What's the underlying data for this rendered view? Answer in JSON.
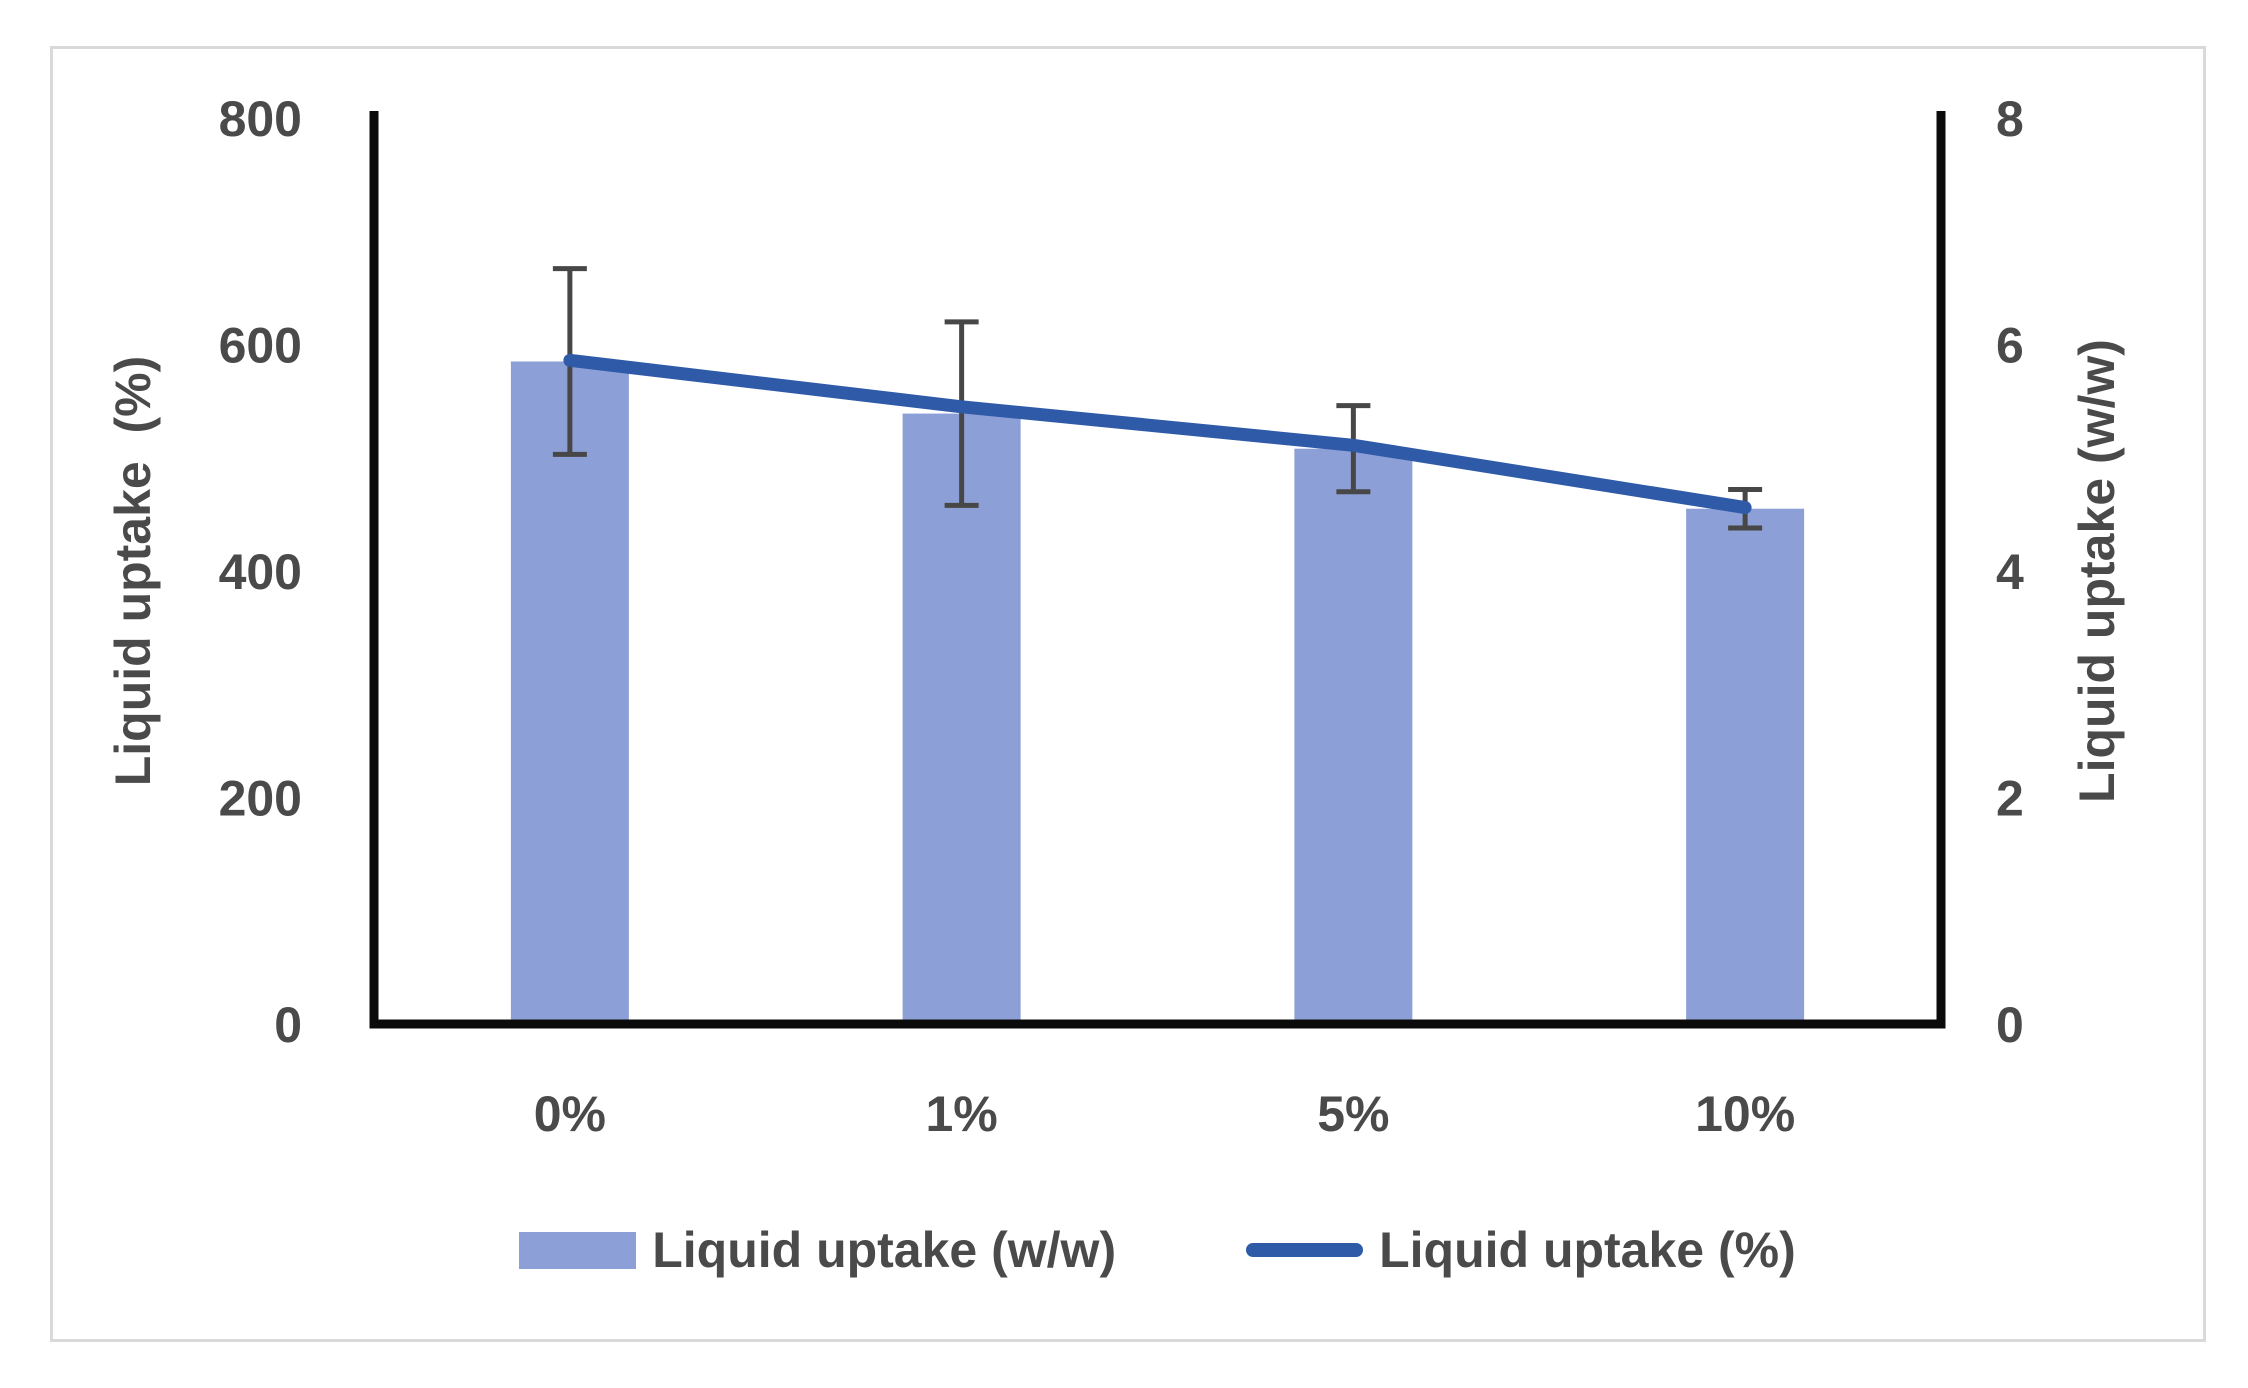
{
  "chart_data": {
    "type": "combo-bar-line",
    "title": "",
    "categories": [
      "0%",
      "1%",
      "5%",
      "10%"
    ],
    "series": [
      {
        "name": "Liquid uptake (w/w)",
        "type": "bar",
        "axis": "left",
        "values": [
          585,
          539,
          508,
          455
        ],
        "error_bars": [
          82,
          81,
          38,
          17
        ],
        "color": "#8C9FD6"
      },
      {
        "name": "Liquid uptake (%)",
        "type": "line",
        "axis": "right",
        "values": [
          5.86,
          5.45,
          5.11,
          4.56
        ],
        "color": "#2E5AA8"
      }
    ],
    "left_axis": {
      "label": "Liquid uptake  (%)",
      "range": [
        0,
        800
      ],
      "ticks": [
        0,
        200,
        400,
        600,
        800
      ]
    },
    "right_axis": {
      "label": "Liquid uptake (w/w)",
      "range": [
        0,
        8
      ],
      "ticks": [
        0,
        2,
        4,
        6,
        8
      ]
    },
    "grid": false,
    "legend_position": "bottom",
    "colors": {
      "axis_line": "#0B0B0B",
      "error_bar": "#474747",
      "text": "#4A4A4A",
      "frame_border": "#D9D9D9",
      "background": "#FFFFFF"
    }
  }
}
